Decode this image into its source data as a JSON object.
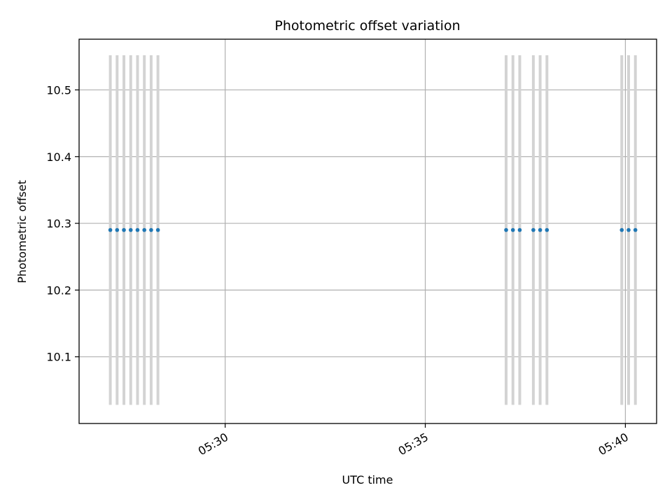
{
  "chart_data": {
    "type": "scatter",
    "title": "Photometric offset variation",
    "xlabel": "UTC time",
    "ylabel": "Photometric offset",
    "x_tick_labels": [
      "05:30",
      "05:35",
      "05:40"
    ],
    "x_tick_minutes": [
      330,
      335,
      340
    ],
    "y_tick_labels": [
      "10.1",
      "10.2",
      "10.3",
      "10.4",
      "10.5"
    ],
    "y_tick_values": [
      10.1,
      10.2,
      10.3,
      10.4,
      10.5
    ],
    "xlim_minutes": [
      326.35,
      340.78
    ],
    "ylim": [
      10.0,
      10.576
    ],
    "grid": true,
    "series": [
      {
        "marker_color": "#1f77b4",
        "errorbar_color": "#d3d3d3",
        "points": [
          {
            "t": "05:27:08",
            "minute": 327.13,
            "y": 10.29,
            "err": 0.262
          },
          {
            "t": "05:27:18",
            "minute": 327.3,
            "y": 10.29,
            "err": 0.262
          },
          {
            "t": "05:27:28",
            "minute": 327.47,
            "y": 10.29,
            "err": 0.262
          },
          {
            "t": "05:27:38",
            "minute": 327.64,
            "y": 10.29,
            "err": 0.262
          },
          {
            "t": "05:27:49",
            "minute": 327.81,
            "y": 10.29,
            "err": 0.262
          },
          {
            "t": "05:27:59",
            "minute": 327.98,
            "y": 10.29,
            "err": 0.262
          },
          {
            "t": "05:28:09",
            "minute": 328.15,
            "y": 10.29,
            "err": 0.262
          },
          {
            "t": "05:28:19",
            "minute": 328.32,
            "y": 10.29,
            "err": 0.262
          },
          {
            "t": "05:37:01",
            "minute": 337.02,
            "y": 10.29,
            "err": 0.262
          },
          {
            "t": "05:37:11",
            "minute": 337.19,
            "y": 10.29,
            "err": 0.262
          },
          {
            "t": "05:37:21",
            "minute": 337.36,
            "y": 10.29,
            "err": 0.262
          },
          {
            "t": "05:37:42",
            "minute": 337.7,
            "y": 10.29,
            "err": 0.262
          },
          {
            "t": "05:37:52",
            "minute": 337.87,
            "y": 10.29,
            "err": 0.262
          },
          {
            "t": "05:38:02",
            "minute": 338.04,
            "y": 10.29,
            "err": 0.262
          },
          {
            "t": "05:39:55",
            "minute": 339.91,
            "y": 10.29,
            "err": 0.262
          },
          {
            "t": "05:40:05",
            "minute": 340.08,
            "y": 10.29,
            "err": 0.262
          },
          {
            "t": "05:40:15",
            "minute": 340.25,
            "y": 10.29,
            "err": 0.262
          }
        ]
      }
    ]
  }
}
